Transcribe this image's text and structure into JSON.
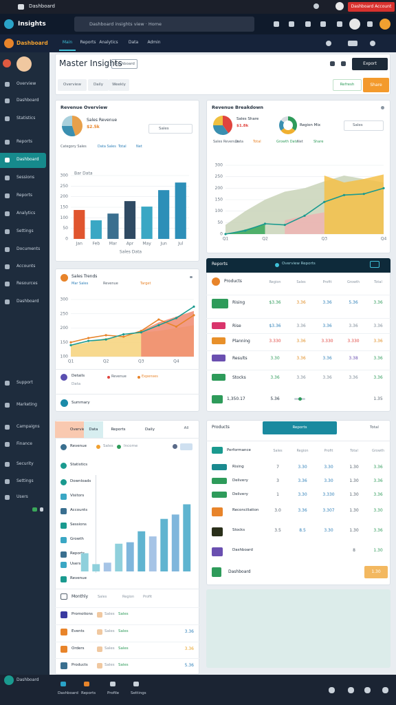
{
  "topbar": {
    "title": "Dashboard",
    "account": "Dashboard Account"
  },
  "toolbar": {
    "address": "Dashboard insights view · Home"
  },
  "brand": "Insights",
  "nav": {
    "logo": "Dashboard",
    "tabs": [
      "Main",
      "Reports",
      "Analytics",
      "Data",
      "Admin"
    ]
  },
  "sidebar": {
    "items": [
      "Overview",
      "Dashboard",
      "Statistics",
      "Reports",
      "Dashboard",
      "Sessions",
      "Reports",
      "Analytics",
      "Settings",
      "Documents",
      "Accounts",
      "Resources",
      "Dashboard",
      "Support",
      "Marketing",
      "Campaigns",
      "Finance",
      "Security",
      "Settings",
      "Users"
    ],
    "footer": "Dashboard"
  },
  "header": {
    "title": "Master Insights",
    "badge": "Dashboard",
    "export": "Export",
    "filters": [
      "Overview",
      "Daily",
      "Weekly"
    ],
    "refresh": "Refresh",
    "share": "Share"
  },
  "revenue_card": {
    "title": "Revenue Overview",
    "pie_label": "Sales Revenue",
    "pie_value": "$2.5k",
    "dropdown": "Sales",
    "legend": [
      "Category Sales",
      "Data Sales",
      "Total",
      "Net"
    ],
    "pie": {
      "type": "pie",
      "values": [
        45,
        30,
        25
      ],
      "colors": [
        "#e8a04a",
        "#3a8fb0",
        "#a9d0dc"
      ]
    },
    "chart": {
      "type": "bar",
      "title": "Bar Data",
      "caption": "Sales Data",
      "categories": [
        "Jan",
        "Feb",
        "Mar",
        "Apr",
        "May",
        "Jun",
        "Jul"
      ],
      "values": [
        137,
        88,
        120,
        179,
        153,
        231,
        267
      ],
      "colors": [
        "#e0552e",
        "#3aa7c4",
        "#3a6f8f",
        "#2f4a63",
        "#3aa7c4",
        "#2d8fb8",
        "#2d8fb8"
      ],
      "ylim": [
        0,
        300
      ],
      "yticks": [
        0,
        50,
        100,
        150,
        200,
        250,
        300
      ]
    }
  },
  "breakdown_card": {
    "title": "Revenue Breakdown",
    "pie_label": "Sales Share",
    "pie_value": "$1.8k",
    "donut_label": "Region Mix",
    "dropdown": "Sales",
    "legend": [
      "Sales Revenue",
      "Data",
      "Total"
    ],
    "legend2": [
      "Growth Data",
      "Net",
      "Share"
    ],
    "pie": {
      "type": "pie",
      "values": [
        40,
        35,
        25
      ],
      "colors": [
        "#e0443e",
        "#3a8fb0",
        "#f0c040"
      ]
    },
    "donut": {
      "type": "donut",
      "values": [
        35,
        30,
        20,
        15
      ],
      "colors": [
        "#2e9b5a",
        "#f0b030",
        "#3a8fb0",
        "#d8dde2"
      ]
    },
    "chart": {
      "type": "area",
      "categories": [
        "Q1",
        null,
        "Q2",
        null,
        null,
        "Q3",
        null,
        null,
        "Q4"
      ],
      "series": [
        {
          "color": "#c9d4b8",
          "values": [
            40,
            100,
            150,
            185,
            200,
            230,
            255,
            240,
            225
          ]
        },
        {
          "color": "#f4c048",
          "values": [
            null,
            null,
            null,
            null,
            null,
            255,
            225,
            240,
            260
          ]
        },
        {
          "color": "#efb3b3",
          "values": [
            null,
            null,
            null,
            60,
            80,
            95,
            null,
            null,
            null
          ]
        },
        {
          "color": "#3aa85a",
          "values": [
            0,
            20,
            45,
            null,
            null,
            null,
            null,
            null,
            null
          ]
        }
      ],
      "line": {
        "color": "#1a9a8f",
        "values": [
          0,
          15,
          45,
          40,
          80,
          140,
          170,
          175,
          200
        ]
      },
      "ylim": [
        0,
        300
      ],
      "yticks": [
        0,
        50,
        100,
        150,
        200,
        250,
        300
      ]
    }
  },
  "trends_card": {
    "title": "Sales Trends",
    "legend": [
      "Mar Sales",
      "Revenue",
      "Target"
    ],
    "chart": {
      "type": "line",
      "categories": [
        "Q1",
        null,
        "Q2",
        null,
        "Q3",
        null,
        "Q4",
        null
      ],
      "series": [
        {
          "color": "#f6d27a",
          "values": [
            140,
            150,
            165,
            170,
            185,
            190,
            200,
            210
          ]
        },
        {
          "color": "#f08a70",
          "values": [
            null,
            null,
            null,
            null,
            190,
            220,
            240,
            260
          ]
        }
      ],
      "lines": [
        {
          "color": "#e8842a",
          "values": [
            150,
            165,
            175,
            170,
            190,
            230,
            205,
            245
          ]
        },
        {
          "color": "#1a9a8f",
          "values": [
            140,
            155,
            160,
            178,
            185,
            210,
            235,
            275
          ]
        }
      ],
      "ylim": [
        100,
        300
      ],
      "yticks": [
        100,
        150,
        200,
        250,
        300
      ]
    },
    "details": "Details",
    "details_sub": "Data",
    "details_legend": [
      "Revenue",
      "Expenses"
    ],
    "summary": "Summary"
  },
  "reports_table": {
    "title": "Reports",
    "banner": "Overview Reports",
    "heading": "Products",
    "columns": [
      "Region",
      "Sales",
      "Profit",
      "Growth",
      "Total"
    ],
    "rows": [
      {
        "name": "Rising",
        "color": "#2e9b5a",
        "cells": [
          "$3.36",
          "3.36",
          "3.36",
          "5.36",
          "3.36"
        ],
        "cell_colors": [
          "#2e9b5a",
          "#e08a1e",
          "#2d7fb8",
          "#2d7fb8",
          "#2e9b5a"
        ]
      },
      {
        "name": "Rise",
        "color": "#d9346b",
        "cells": [
          "$3.36",
          "3.36",
          "3.36",
          "3.36",
          "3.36"
        ],
        "cell_colors": [
          "#2d7fb8",
          "#7d8a96",
          "#2d7fb8",
          "#7d8a96",
          "#7d8a96"
        ]
      },
      {
        "name": "Planning",
        "color": "#e8902a",
        "cells": [
          "3.330",
          "3.36",
          "3.330",
          "3.330",
          "3.36"
        ],
        "cell_colors": [
          "#e0443e",
          "#e08a1e",
          "#e0443e",
          "#e0443e",
          "#e08a1e"
        ]
      },
      {
        "name": "Results",
        "color": "#6a4fb0",
        "cells": [
          "3.30",
          "3.36",
          "3.36",
          "3.38",
          "3.36"
        ],
        "cell_colors": [
          "#2e9b5a",
          "#e08a1e",
          "#2d7fb8",
          "#6a4fb0",
          "#2e9b5a"
        ]
      },
      {
        "name": "Stocks",
        "color": "#2e9b5a",
        "cells": [
          "3.36",
          "3.36",
          "3.36",
          "3.36",
          "3.36"
        ],
        "cell_colors": [
          "#2e9b5a",
          "#7d8a96",
          "#7d8a96",
          "#7d8a96",
          "#2e9b5a"
        ]
      }
    ],
    "total": {
      "name": "1,350.17",
      "first": "5.36",
      "last": "1.35"
    }
  },
  "activity_card": {
    "tabs": [
      "Overview",
      "Data",
      "Reports",
      "Daily"
    ],
    "tab_button": "All",
    "items": [
      "Revenue",
      "Statistics",
      "Downloads",
      "Visitors",
      "Accounts",
      "Sessions",
      "Growth",
      "Reports",
      "Users",
      "Revenue"
    ],
    "item_tags": [
      "Sales",
      "Income"
    ],
    "chart": {
      "type": "bar",
      "categories": [
        null,
        null,
        null,
        null,
        null,
        null,
        null,
        null,
        null,
        null
      ],
      "values": [
        25,
        10,
        12,
        38,
        40,
        55,
        48,
        72,
        78,
        92
      ],
      "colors": [
        "#8fd0dc",
        "#8fd0dc",
        "#a6c4e6",
        "#8fd0dc",
        "#7fb6dc",
        "#5fb4d0",
        "#a6c4e6",
        "#5fb4d0",
        "#7fb6dc",
        "#5fb4d0"
      ],
      "ylim": [
        0,
        100
      ]
    },
    "monthly": {
      "title": "Monthly",
      "columns": [
        "Sales",
        "Region",
        "Profit"
      ],
      "rows": [
        {
          "name": "Promotions",
          "tag": "Sales"
        },
        {
          "name": "Events",
          "tag": "Sales",
          "value": "3.36"
        },
        {
          "name": "Orders",
          "tag": "Sales",
          "value": "3.36"
        },
        {
          "name": "Products",
          "tag": "Sales",
          "value": "5.36"
        }
      ]
    }
  },
  "products_table": {
    "title": "Products",
    "button": "Reports",
    "corner": "Total",
    "columns": [
      "Performance",
      "Sales",
      "Region",
      "Profit",
      "Total",
      "Growth"
    ],
    "rows": [
      {
        "name": "Rising",
        "color": "#1a8a8f",
        "cells": [
          "7",
          "3.30",
          "3.30",
          "1.30",
          "3.36"
        ]
      },
      {
        "name": "Delivery",
        "color": "#2e9b5a",
        "cells": [
          "3",
          "3.36",
          "3.30",
          "1.30",
          "3.36"
        ]
      },
      {
        "name": "Delivery",
        "color": "#2e9b5a",
        "cells": [
          "1",
          "3.30",
          "3.330",
          "1.30",
          "3.36"
        ]
      },
      {
        "name": "Reconciliation",
        "color": "#e8842a",
        "cells": [
          "3.0",
          "3.36",
          "3.307",
          "1.30",
          "3.30"
        ]
      },
      {
        "name": "Stocks",
        "color": "#2a2f1a",
        "cells": [
          "3.5",
          "8.5",
          "3.30",
          "1.30",
          "3.36"
        ]
      },
      {
        "name": "Dashboard",
        "color": "#6a4fb0",
        "cells": [
          "8",
          "1.30"
        ]
      }
    ],
    "footer_row": {
      "name": "Dashboard",
      "pill": "1.30"
    }
  },
  "bottombar": {
    "items": [
      "Dashboard",
      "Reports",
      "Profile",
      "Settings"
    ]
  }
}
